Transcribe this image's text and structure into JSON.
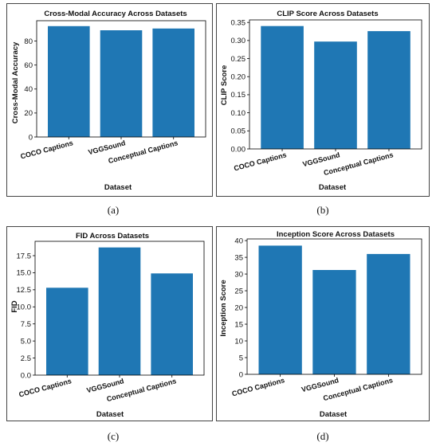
{
  "chart_data": [
    {
      "id": "a",
      "type": "bar",
      "title": "Cross-Modal Accuracy Across Datasets",
      "xlabel": "Dataset",
      "ylabel": "Cross-Modal Accuracy",
      "categories": [
        "COCO Captions",
        "VGGSound",
        "Conceptual Captions"
      ],
      "values": [
        92.5,
        89.0,
        90.5
      ],
      "ylim": [
        0,
        97
      ],
      "yticks": [
        0,
        20,
        40,
        60,
        80
      ],
      "ytick_labels": [
        "0",
        "20",
        "40",
        "60",
        "80"
      ],
      "bar_color": "#1f77b4",
      "grid": false
    },
    {
      "id": "b",
      "type": "bar",
      "title": "CLIP Score Across Datasets",
      "xlabel": "Dataset",
      "ylabel": "CLIP Score",
      "categories": [
        "COCO Captions",
        "VGGSound",
        "Conceptual Captions"
      ],
      "values": [
        0.34,
        0.297,
        0.326
      ],
      "ylim": [
        0,
        0.357
      ],
      "yticks": [
        0,
        0.05,
        0.1,
        0.15,
        0.2,
        0.25,
        0.3,
        0.35
      ],
      "ytick_labels": [
        "0.00",
        "0.05",
        "0.10",
        "0.15",
        "0.20",
        "0.25",
        "0.30",
        "0.35"
      ],
      "bar_color": "#1f77b4",
      "grid": false
    },
    {
      "id": "c",
      "type": "bar",
      "title": "FID Across Datasets",
      "xlabel": "Dataset",
      "ylabel": "FID",
      "categories": [
        "COCO Captions",
        "VGGSound",
        "Conceptual Captions"
      ],
      "values": [
        12.8,
        18.7,
        14.9
      ],
      "ylim": [
        0,
        19.6
      ],
      "yticks": [
        0,
        2.5,
        5,
        7.5,
        10,
        12.5,
        15,
        17.5
      ],
      "ytick_labels": [
        "0.0",
        "2.5",
        "5.0",
        "7.5",
        "10.0",
        "12.5",
        "15.0",
        "17.5"
      ],
      "bar_color": "#1f77b4",
      "grid": false
    },
    {
      "id": "d",
      "type": "bar",
      "title": "Inception Score Across Datasets",
      "xlabel": "Dataset",
      "ylabel": "Inception Score",
      "categories": [
        "COCO Captions",
        "VGGSound",
        "Conceptual Captions"
      ],
      "values": [
        38.5,
        31.2,
        36.0
      ],
      "ylim": [
        0,
        40.5
      ],
      "yticks": [
        0,
        5,
        10,
        15,
        20,
        25,
        30,
        35,
        40
      ],
      "ytick_labels": [
        "0",
        "5",
        "10",
        "15",
        "20",
        "25",
        "30",
        "35",
        "40"
      ],
      "bar_color": "#1f77b4",
      "grid": false
    }
  ],
  "captions": [
    "(a)",
    "(b)",
    "(c)",
    "(d)"
  ]
}
